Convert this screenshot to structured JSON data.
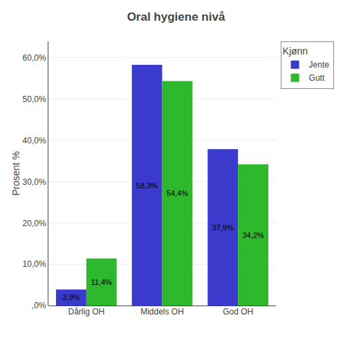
{
  "chart_data": {
    "type": "bar",
    "title": "Oral hygiene nivå",
    "ylabel": "Prosent %",
    "categories": [
      "Dårlig OH",
      "Middels OH",
      "God OH"
    ],
    "series": [
      {
        "name": "Jente",
        "color": "#3a3acc",
        "values": [
          3.9,
          58.3,
          37.9
        ],
        "value_labels": [
          "3,9%",
          "58,3%",
          "37,9%"
        ]
      },
      {
        "name": "Gutt",
        "color": "#2db82d",
        "values": [
          11.4,
          54.4,
          34.2
        ],
        "value_labels": [
          "11,4%",
          "54,4%",
          "34,2%"
        ]
      }
    ],
    "ylim": [
      0,
      64
    ],
    "yticks": [
      {
        "value": 0,
        "label": ",0%"
      },
      {
        "value": 10,
        "label": "10,0%"
      },
      {
        "value": 20,
        "label": "20,0%"
      },
      {
        "value": 30,
        "label": "30,0%"
      },
      {
        "value": 40,
        "label": "40,0%"
      },
      {
        "value": 50,
        "label": "50,0%"
      },
      {
        "value": 60,
        "label": "60,0%"
      }
    ],
    "legend_title": "Kjønn",
    "legend": "right",
    "grid": true,
    "data_labels": true
  }
}
